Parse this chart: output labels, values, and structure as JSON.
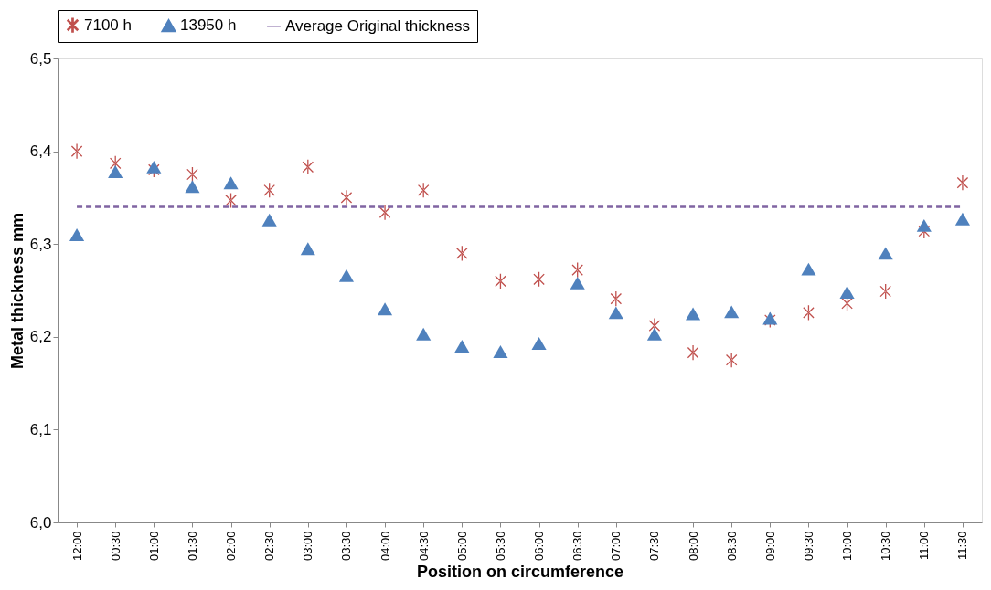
{
  "chart_data": {
    "type": "scatter",
    "xlabel": "Position on circumference",
    "ylabel": "Metal thickness mm",
    "categories": [
      "12:00",
      "00:30",
      "01:00",
      "01:30",
      "02:00",
      "02:30",
      "03:00",
      "03:30",
      "04:00",
      "04:30",
      "05:00",
      "05:30",
      "06:00",
      "06:30",
      "07:00",
      "07:30",
      "08:00",
      "08:30",
      "09:00",
      "09:30",
      "10:00",
      "10:30",
      "11:00",
      "11:30"
    ],
    "series": [
      {
        "name": "7100 h",
        "marker": "cross",
        "color": "#c0504d",
        "values": [
          6.4,
          6.387,
          6.38,
          6.375,
          6.347,
          6.358,
          6.383,
          6.35,
          6.334,
          6.358,
          6.29,
          6.26,
          6.262,
          6.272,
          6.241,
          6.212,
          6.183,
          6.175,
          6.218,
          6.226,
          6.236,
          6.249,
          6.314,
          6.366
        ]
      },
      {
        "name": "13950 h",
        "marker": "triangle",
        "color": "#4f81bd",
        "values": [
          6.31,
          6.378,
          6.383,
          6.362,
          6.366,
          6.326,
          6.295,
          6.266,
          6.23,
          6.203,
          6.19,
          6.184,
          6.193,
          6.258,
          6.226,
          6.203,
          6.225,
          6.227,
          6.22,
          6.273,
          6.248,
          6.29,
          6.32,
          6.327
        ]
      },
      {
        "name": "Average Original thickness",
        "type": "line",
        "marker": "none",
        "line_style": "dashed",
        "color": "#8064a2",
        "values": [
          6.34,
          6.34,
          6.34,
          6.34,
          6.34,
          6.34,
          6.34,
          6.34,
          6.34,
          6.34,
          6.34,
          6.34,
          6.34,
          6.34,
          6.34,
          6.34,
          6.34,
          6.34,
          6.34,
          6.34,
          6.34,
          6.34,
          6.34,
          6.34
        ]
      }
    ],
    "ylim": [
      6.0,
      6.5
    ],
    "yticks": [
      {
        "value": 6.0,
        "label": "6,0"
      },
      {
        "value": 6.1,
        "label": "6,1"
      },
      {
        "value": 6.2,
        "label": "6,2"
      },
      {
        "value": 6.3,
        "label": "6,3"
      },
      {
        "value": 6.4,
        "label": "6,4"
      },
      {
        "value": 6.5,
        "label": "6,5"
      }
    ],
    "legend": "top",
    "grid": false
  }
}
